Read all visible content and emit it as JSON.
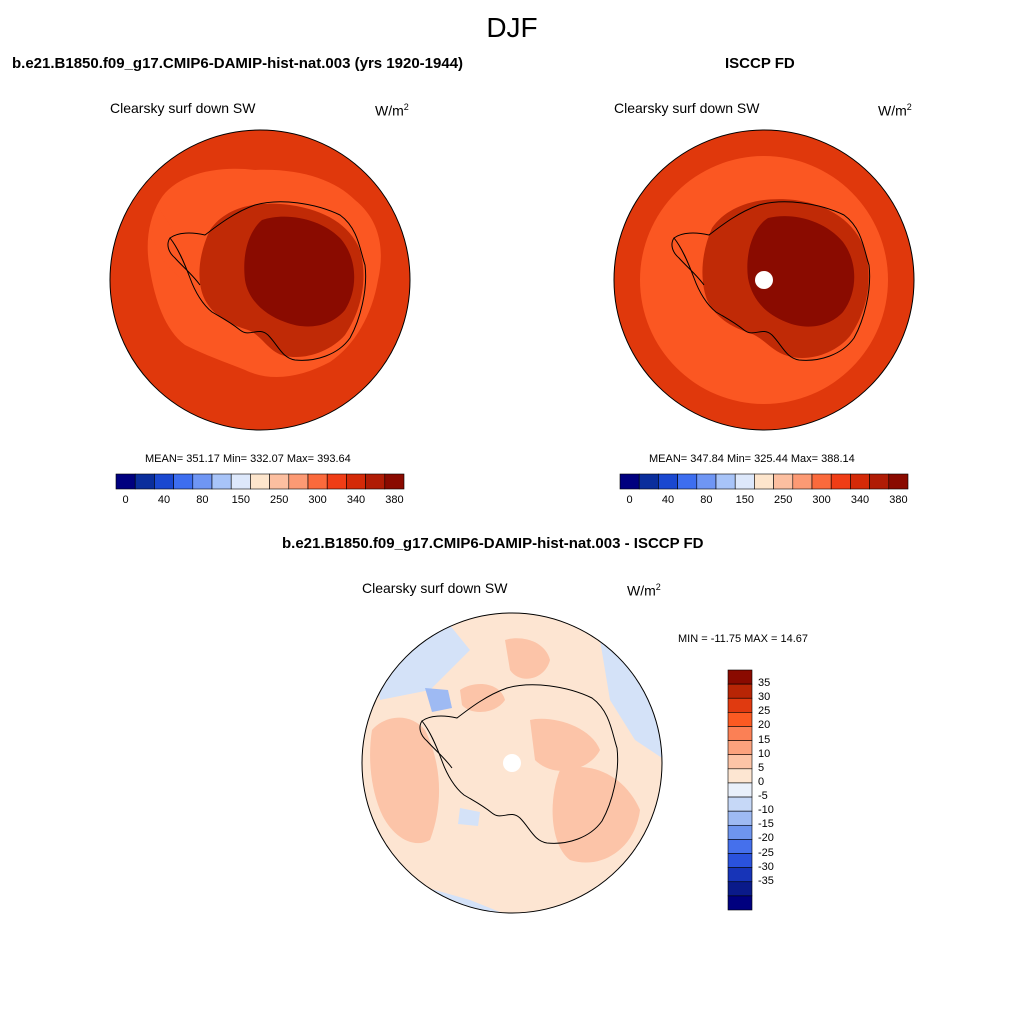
{
  "season": "DJF",
  "panels": [
    {
      "title": "b.e21.B1850.f09_g17.CMIP6-DAMIP-hist-nat.003 (yrs 1920-1944)",
      "variable": "Clearsky surf down SW",
      "units_base": "W/m",
      "units_exp": "2",
      "stats": "MEAN= 351.17  Min= 332.07  Max= 393.64"
    },
    {
      "title": "ISCCP FD",
      "variable": "Clearsky surf down SW",
      "units_base": "W/m",
      "units_exp": "2",
      "stats": "MEAN= 347.84  Min= 325.44  Max= 388.14"
    },
    {
      "title": "b.e21.B1850.f09_g17.CMIP6-DAMIP-hist-nat.003 - ISCCP FD",
      "variable": "Clearsky surf down SW",
      "units_base": "W/m",
      "units_exp": "2",
      "stats": "MIN = -11.75 MAX =  14.67"
    }
  ],
  "abs_colorbar": {
    "colors": [
      "#00007f",
      "#0a2e9c",
      "#1a48d0",
      "#3d6ef0",
      "#6f96f4",
      "#a8c4f8",
      "#dde8fb",
      "#fde5cc",
      "#fcbfa0",
      "#fc9a74",
      "#fb6a3c",
      "#f03d16",
      "#d42a08",
      "#b01c05",
      "#8a0a00"
    ],
    "tick_labels": [
      "0",
      "40",
      "80",
      "150",
      "250",
      "300",
      "340",
      "380"
    ]
  },
  "diff_colorbar": {
    "colors_top_to_bottom": [
      "#8a0a00",
      "#b82505",
      "#e03a10",
      "#fb5a22",
      "#fb8055",
      "#fca27d",
      "#fdc4a6",
      "#fde6d2",
      "#e9f0fb",
      "#c6d8f7",
      "#9ebaf3",
      "#6e95ef",
      "#4570ec",
      "#2a52dd",
      "#1734b8",
      "#0a1a8a",
      "#00007f"
    ],
    "tick_labels": [
      "35",
      "30",
      "25",
      "20",
      "15",
      "10",
      "5",
      "0",
      "-5",
      "-10",
      "-15",
      "-20",
      "-25",
      "-30",
      "-35"
    ]
  },
  "colors": {
    "ocean_main": "#e0380c",
    "zone_mid": "#fb5722",
    "zone_inner": "#c02a06",
    "zone_core": "#8a0b00",
    "diff_base": "#fde5d2",
    "diff_warm": "#fcc4a8",
    "diff_cool": "#d4e2f8",
    "diff_blue": "#9ebaf3"
  }
}
